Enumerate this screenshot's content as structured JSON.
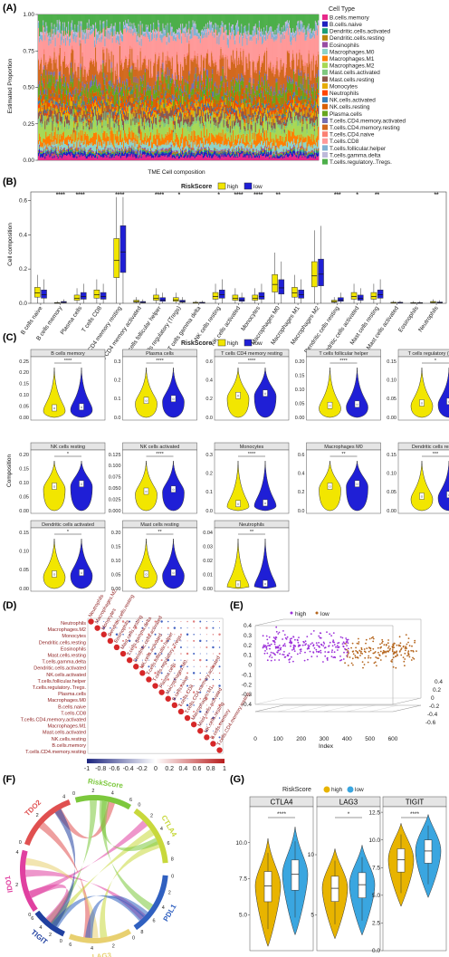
{
  "panels": {
    "A": {
      "label": "(A)",
      "ylabel": "Estimated Proportion",
      "xlabel": "TME Cell composition",
      "yticks": [
        "0.00",
        "0.25",
        "0.50",
        "0.75",
        "1.00"
      ],
      "legend_title": "Cell Type",
      "cell_types": [
        "B.cells.memory",
        "B.cells.naive",
        "Dendritic.cells.activated",
        "Dendritic.cells.resting",
        "Eosinophils",
        "Macrophages.M0",
        "Macrophages.M1",
        "Macrophages.M2",
        "Mast.cells.activated",
        "Mast.cells.resting",
        "Monocytes",
        "Neutrophils",
        "NK.cells.activated",
        "NK.cells.resting",
        "Plasma.cells",
        "T.cells.CD4.memory.activated",
        "T.cells.CD4.memory.resting",
        "T.cells.CD4.naive",
        "T.cells.CD8",
        "T.cells.follicular.helper",
        "T.cells.gamma.delta",
        "T.cells.regulatory..Tregs."
      ],
      "colors": [
        "#e7298a",
        "#1f1fbf",
        "#1a9e77",
        "#b8860b",
        "#984ea3",
        "#8dd3c7",
        "#ff7f00",
        "#a6d854",
        "#7fc97f",
        "#8c564b",
        "#e6ab02",
        "#ff4500",
        "#377eb8",
        "#d95f02",
        "#66a61e",
        "#7570b3",
        "#d2691e",
        "#fb8072",
        "#ff9999",
        "#80b1d3",
        "#bebada",
        "#4daf4a"
      ]
    },
    "B": {
      "label": "(B)",
      "legend_title": "RiskScore",
      "groups": [
        "high",
        "low"
      ],
      "group_colors": [
        "#f2e600",
        "#1f1fd6"
      ],
      "ylabel": "Cell composition",
      "yticks": [
        "0.0",
        "0.2",
        "0.4",
        "0.6"
      ],
      "categories": [
        "B cells naive",
        "B cells memory",
        "Plasma cells",
        "T cells CD8",
        "T cells CD4 memory resting",
        "T cells CD4 memory activated",
        "T cells follicular helper",
        "T cells regulatory (Tregs)",
        "T cells gamma delta",
        "NK cells resting",
        "NK cells activated",
        "Monocytes",
        "Macrophages M0",
        "Macrophages M1",
        "Macrophages M2",
        "Dendritic cells resting",
        "Dendritic cells activated",
        "Mast cells resting",
        "Mast cells activated",
        "Eosinophils",
        "Neutrophils"
      ],
      "significance": [
        "",
        "****",
        "****",
        "",
        "****",
        "",
        "****",
        "*",
        "",
        "*",
        "****",
        "****",
        "**",
        "",
        "",
        "***",
        "*",
        "**",
        "",
        "",
        "**"
      ],
      "high_median": [
        0.06,
        0.001,
        0.03,
        0.05,
        0.25,
        0.01,
        0.03,
        0.02,
        0.002,
        0.04,
        0.03,
        0.03,
        0.11,
        0.06,
        0.16,
        0.01,
        0.04,
        0.04,
        0.002,
        0.001,
        0.005
      ],
      "low_median": [
        0.05,
        0.005,
        0.04,
        0.04,
        0.3,
        0.005,
        0.02,
        0.01,
        0.002,
        0.05,
        0.02,
        0.04,
        0.09,
        0.05,
        0.17,
        0.02,
        0.03,
        0.05,
        0.002,
        0.001,
        0.003
      ]
    },
    "C": {
      "label": "(C)",
      "legend_title": "RiskScore",
      "groups": [
        "high",
        "low"
      ],
      "ylabel": "Composition",
      "facets": [
        {
          "title": "B cells memory",
          "sig": "****",
          "yticks": [
            "0.00",
            "0.05",
            "0.10",
            "0.15",
            "0.20",
            "0.25"
          ]
        },
        {
          "title": "Plasma cells",
          "sig": "****",
          "yticks": [
            "0.0",
            "0.1",
            "0.2",
            "0.3"
          ]
        },
        {
          "title": "T cells CD4 memory resting",
          "sig": "****",
          "yticks": [
            "0.0",
            "0.2",
            "0.4",
            "0.6"
          ]
        },
        {
          "title": "T cells follicular helper",
          "sig": "****",
          "yticks": [
            "0.00",
            "0.05",
            "0.10",
            "0.15",
            "0.20"
          ]
        },
        {
          "title": "T cells regulatory (Tregs)",
          "sig": "*",
          "yticks": [
            "0.00",
            "0.05",
            "0.10",
            "0.15"
          ]
        },
        {
          "title": "NK cells resting",
          "sig": "*",
          "yticks": [
            "0.00",
            "0.05",
            "0.10",
            "0.15",
            "0.20"
          ]
        },
        {
          "title": "NK cells activated",
          "sig": "****",
          "yticks": [
            "0.000",
            "0.025",
            "0.050",
            "0.075",
            "0.100",
            "0.125"
          ]
        },
        {
          "title": "Monocytes",
          "sig": "****",
          "yticks": [
            "0.0",
            "0.1",
            "0.2",
            "0.3"
          ]
        },
        {
          "title": "Macrophages M0",
          "sig": "**",
          "yticks": [
            "0.0",
            "0.2",
            "0.4",
            "0.6"
          ]
        },
        {
          "title": "Dendritic cells resting",
          "sig": "***",
          "yticks": [
            "0.00",
            "0.05",
            "0.10",
            "0.15"
          ]
        },
        {
          "title": "Dendritic cells activated",
          "sig": "*",
          "yticks": [
            "0.00",
            "0.05",
            "0.10",
            "0.15"
          ]
        },
        {
          "title": "Mast cells resting",
          "sig": "**",
          "yticks": [
            "0.00",
            "0.05",
            "0.10",
            "0.15",
            "0.20"
          ]
        },
        {
          "title": "Neutrophils",
          "sig": "**",
          "yticks": [
            "0.00",
            "0.01",
            "0.02",
            "0.03",
            "0.04"
          ]
        }
      ]
    },
    "D": {
      "label": "(D)",
      "variables": [
        "Neutrophils",
        "Macrophages.M2",
        "Monocytes",
        "Dendritic.cells.resting",
        "Eosinophils",
        "Mast.cells.resting",
        "T.cells.gamma.delta",
        "Dendritic.cells.activated",
        "NK.cells.activated",
        "T.cells.follicular.helper",
        "T.cells.regulatory..Tregs.",
        "Plasma.cells",
        "Macrophages.M0",
        "B.cells.naive",
        "T.cells.CD8",
        "T.cells.CD4.memory.activated",
        "Macrophages.M1",
        "Mast.cells.activated",
        "NK.cells.resting",
        "B.cells.memory",
        "T.cells.CD4.memory.resting"
      ],
      "scale_ticks": [
        "-1",
        "-0.8",
        "-0.6",
        "-0.4",
        "-0.2",
        "0",
        "0.2",
        "0.4",
        "0.6",
        "0.8",
        "1"
      ]
    },
    "E": {
      "label": "(E)",
      "legend": [
        "high",
        "low"
      ],
      "colors": [
        "#9b30d9",
        "#b5651d"
      ],
      "xlabel": "Index",
      "xticks": [
        "0",
        "100",
        "200",
        "300",
        "400",
        "500",
        "600"
      ],
      "yticks": [
        "-0.4",
        "-0.3",
        "-0.2",
        "-0.1",
        "0",
        "0.1",
        "0.2",
        "0.3",
        "0.4"
      ],
      "zticks": [
        "-0.6",
        "-0.4",
        "-0.2",
        "0",
        "0.2",
        "0.4"
      ]
    },
    "F": {
      "label": "(F)",
      "sectors": [
        {
          "name": "IDO1",
          "color": "#e040a0",
          "ticks": [
            "0",
            "2",
            "4"
          ]
        },
        {
          "name": "TDO2",
          "color": "#e05050",
          "ticks": [
            "0",
            "2",
            "4"
          ]
        },
        {
          "name": "RiskScore",
          "color": "#7cc83c",
          "ticks": [
            "0",
            "2",
            "4",
            "6"
          ]
        },
        {
          "name": "CTLA4",
          "color": "#c8d83c",
          "ticks": [
            "0",
            "2",
            "4",
            "6",
            "8"
          ]
        },
        {
          "name": "PDL1",
          "color": "#3060c0",
          "ticks": [
            "0",
            "2",
            "4",
            "6",
            "8"
          ]
        },
        {
          "name": "LAG3",
          "color": "#e8d070",
          "ticks": [
            "0",
            "2",
            "4",
            "6"
          ]
        },
        {
          "name": "TIGIT",
          "color": "#2040a0",
          "ticks": [
            "0",
            "2",
            "4",
            "6"
          ]
        }
      ]
    },
    "G": {
      "label": "(G)",
      "legend_title": "RiskScore",
      "groups": [
        "high",
        "low"
      ],
      "group_colors": [
        "#e8b400",
        "#3aa6e0"
      ],
      "facets": [
        {
          "title": "CTLA4",
          "sig": "****",
          "yticks": [
            "5.0",
            "7.5",
            "10.0"
          ],
          "ylim": [
            2.5,
            12.5
          ],
          "high_median": 7.0,
          "low_median": 7.8
        },
        {
          "title": "LAG3",
          "sig": "*",
          "yticks": [
            "5",
            "10"
          ],
          "ylim": [
            2,
            14
          ],
          "high_median": 7.2,
          "low_median": 7.5
        },
        {
          "title": "TIGIT",
          "sig": "****",
          "yticks": [
            "0.0",
            "2.5",
            "5.0",
            "7.5",
            "10.0",
            "12.5"
          ],
          "ylim": [
            0,
            13
          ],
          "high_median": 8.2,
          "low_median": 9.0
        }
      ]
    }
  }
}
